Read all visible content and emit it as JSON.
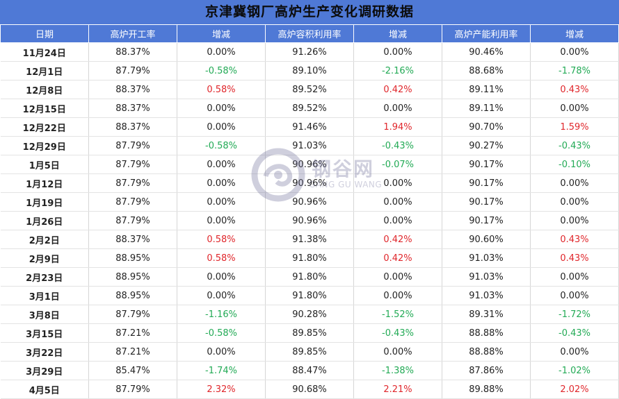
{
  "title": "京津冀钢厂高炉生产变化调研数据",
  "header": {
    "columns": [
      "日期",
      "高炉开工率",
      "增减",
      "高炉容积利用率",
      "增减",
      "高炉产能利用率",
      "增减"
    ]
  },
  "rows": [
    [
      "11月24日",
      "88.37%",
      "0.00%",
      "91.26%",
      "0.00%",
      "90.46%",
      "0.00%"
    ],
    [
      "12月1日",
      "87.79%",
      "-0.58%",
      "89.10%",
      "-2.16%",
      "88.68%",
      "-1.78%"
    ],
    [
      "12月8日",
      "88.37%",
      "0.58%",
      "89.52%",
      "0.42%",
      "89.11%",
      "0.43%"
    ],
    [
      "12月15日",
      "88.37%",
      "0.00%",
      "89.52%",
      "0.00%",
      "89.11%",
      "0.00%"
    ],
    [
      "12月22日",
      "88.37%",
      "0.00%",
      "91.46%",
      "1.94%",
      "90.70%",
      "1.59%"
    ],
    [
      "12月29日",
      "87.79%",
      "-0.58%",
      "91.03%",
      "-0.43%",
      "90.27%",
      "-0.43%"
    ],
    [
      "1月5日",
      "87.79%",
      "0.00%",
      "90.96%",
      "-0.07%",
      "90.17%",
      "-0.10%"
    ],
    [
      "1月12日",
      "87.79%",
      "0.00%",
      "90.96%",
      "0.00%",
      "90.17%",
      "0.00%"
    ],
    [
      "1月19日",
      "87.79%",
      "0.00%",
      "90.96%",
      "0.00%",
      "90.17%",
      "0.00%"
    ],
    [
      "1月26日",
      "87.79%",
      "0.00%",
      "90.96%",
      "0.00%",
      "90.17%",
      "0.00%"
    ],
    [
      "2月2日",
      "88.37%",
      "0.58%",
      "91.38%",
      "0.42%",
      "90.60%",
      "0.43%"
    ],
    [
      "2月9日",
      "88.95%",
      "0.58%",
      "91.80%",
      "0.42%",
      "91.03%",
      "0.43%"
    ],
    [
      "2月23日",
      "88.95%",
      "0.00%",
      "91.80%",
      "0.00%",
      "91.03%",
      "0.00%"
    ],
    [
      "3月1日",
      "88.95%",
      "0.00%",
      "91.80%",
      "0.00%",
      "91.03%",
      "0.00%"
    ],
    [
      "3月8日",
      "87.79%",
      "-1.16%",
      "90.28%",
      "-1.52%",
      "89.31%",
      "-1.72%"
    ],
    [
      "3月15日",
      "87.21%",
      "-0.58%",
      "89.85%",
      "-0.43%",
      "88.88%",
      "-0.43%"
    ],
    [
      "3月22日",
      "87.21%",
      "0.00%",
      "89.85%",
      "0.00%",
      "88.88%",
      "0.00%"
    ],
    [
      "3月29日",
      "85.47%",
      "-1.74%",
      "88.47%",
      "-1.38%",
      "87.86%",
      "-1.02%"
    ],
    [
      "4月5日",
      "87.79%",
      "2.32%",
      "90.68%",
      "2.21%",
      "89.88%",
      "2.02%"
    ]
  ],
  "watermark": {
    "name": "钢谷网",
    "sub": "GANG GU WANG"
  },
  "colors": {
    "header_bg": "#4f79d6",
    "positive": "#e0262b",
    "negative": "#22aa55"
  }
}
